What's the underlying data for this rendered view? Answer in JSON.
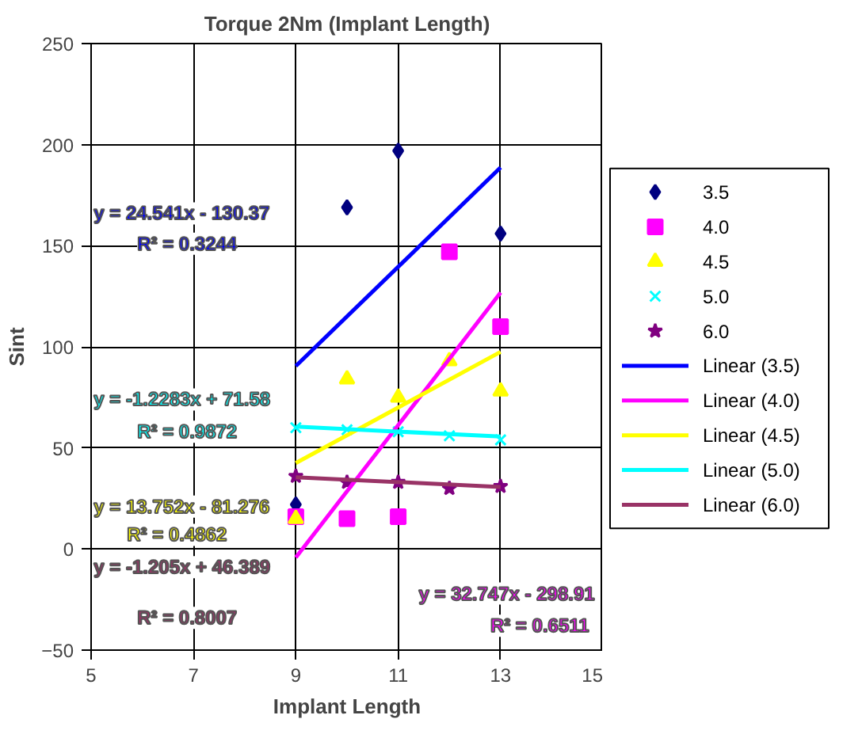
{
  "chart_data": {
    "type": "scatter",
    "title": "Torque 2Nm (Implant Length)",
    "xlabel": "Implant Length",
    "ylabel": "Sint",
    "xlim": [
      5,
      15
    ],
    "xticks": [
      5,
      7,
      9,
      11,
      13,
      15
    ],
    "ylim": [
      -50,
      250
    ],
    "yticks": [
      -50,
      0,
      50,
      100,
      150,
      200,
      250
    ],
    "grid": true,
    "legend": "right",
    "series": [
      {
        "name": "3.5",
        "marker": "diamond",
        "color": "#000080",
        "x": [
          9,
          10,
          11,
          12,
          13
        ],
        "values": [
          22,
          169,
          197,
          null,
          156
        ]
      },
      {
        "name": "4.0",
        "marker": "square",
        "color": "#ff00ff",
        "x": [
          9,
          10,
          11,
          12,
          13
        ],
        "values": [
          16,
          15,
          16,
          147,
          110
        ]
      },
      {
        "name": "4.5",
        "marker": "triangle",
        "color": "#ffff00",
        "x": [
          9,
          10,
          11,
          12,
          13
        ],
        "values": [
          15,
          84,
          75,
          93,
          78
        ]
      },
      {
        "name": "5.0",
        "marker": "cross",
        "color": "#00ffff",
        "x": [
          9,
          10,
          11,
          12,
          13
        ],
        "values": [
          60,
          59,
          58,
          56,
          54
        ]
      },
      {
        "name": "6.0",
        "marker": "star",
        "color": "#800080",
        "x": [
          9,
          10,
          11,
          12,
          13
        ],
        "values": [
          36,
          33,
          33,
          30,
          31
        ]
      },
      {
        "name": "Linear (3.5)",
        "type": "line",
        "color": "#0000ff",
        "x": [
          9,
          13
        ],
        "values": [
          90.5,
          188.7
        ]
      },
      {
        "name": "Linear (4.0)",
        "type": "line",
        "color": "#ff00ff",
        "x": [
          9,
          13
        ],
        "values": [
          -4.2,
          126.8
        ]
      },
      {
        "name": "Linear (4.5)",
        "type": "line",
        "color": "#ffff00",
        "x": [
          9,
          13
        ],
        "values": [
          42.5,
          97.5
        ]
      },
      {
        "name": "Linear (5.0)",
        "type": "line",
        "color": "#00ffff",
        "x": [
          9,
          13
        ],
        "values": [
          60.5,
          55.6
        ]
      },
      {
        "name": "Linear (6.0)",
        "type": "line",
        "color": "#993366",
        "x": [
          9,
          13
        ],
        "values": [
          35.5,
          30.7
        ]
      }
    ],
    "annotations": [
      "y = 24.541x - 130.37",
      "R² = 0.3244",
      "y = 32.747x - 298.91",
      "R² = 0.6511",
      "y = 13.752x - 81.276",
      "R² = 0.4862",
      "y = -1.2283x + 71.58",
      "R² = 0.9872",
      "y = -1.205x + 46.389",
      "R² = 0.8007"
    ]
  }
}
